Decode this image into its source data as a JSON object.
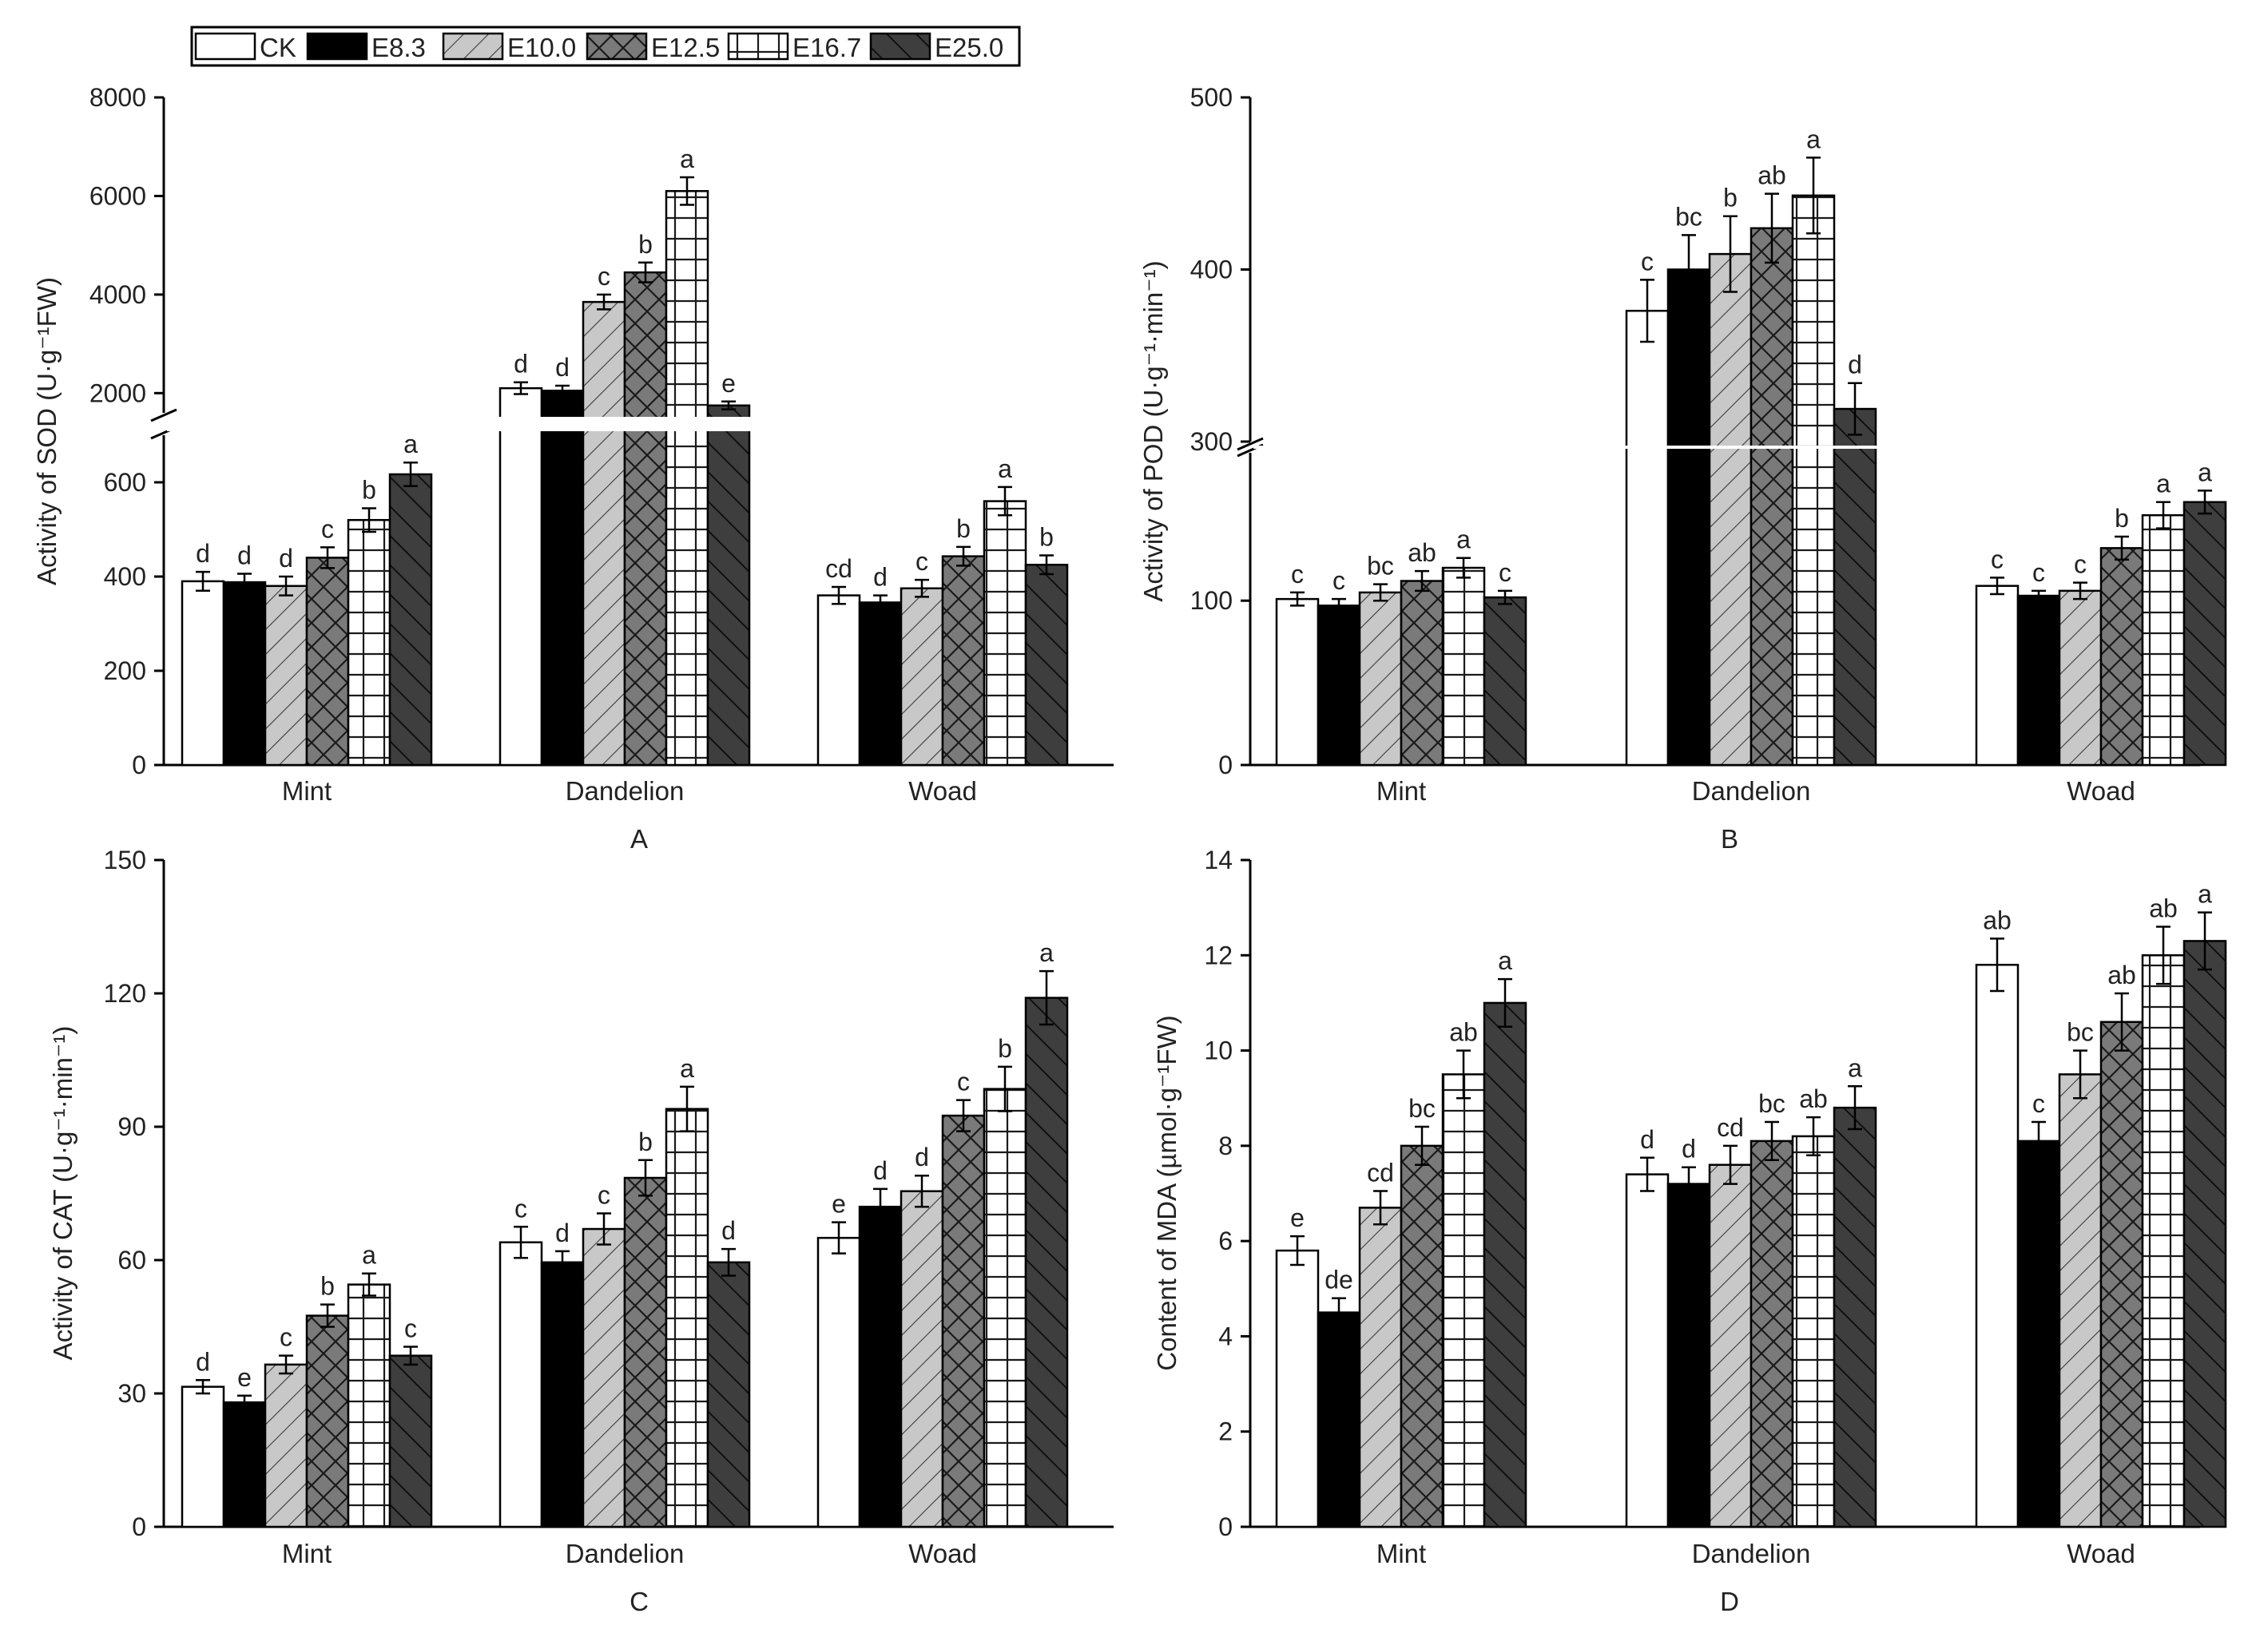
{
  "legend": {
    "entries": [
      {
        "label": "CK",
        "pattern": "white"
      },
      {
        "label": "E8.3",
        "pattern": "black"
      },
      {
        "label": "E10.0",
        "pattern": "light-diag"
      },
      {
        "label": "E12.5",
        "pattern": "cross"
      },
      {
        "label": "E16.7",
        "pattern": "grid"
      },
      {
        "label": "E25.0",
        "pattern": "dark-diag"
      }
    ]
  },
  "colors": {
    "black": "#000000",
    "light_gray": "#c8c8c8",
    "mid_gray": "#7a7a7a",
    "dark_gray": "#3e3e3e",
    "white": "#ffffff"
  },
  "chart_data": [
    {
      "id": "A",
      "panel_label": "A",
      "type": "bar",
      "ylabel": "Activity of SOD (U·g⁻¹FW)",
      "categories": [
        "Mint",
        "Dandelion",
        "Woad"
      ],
      "series_names": [
        "CK",
        "E8.3",
        "E10.0",
        "E12.5",
        "E16.7",
        "E25.0"
      ],
      "broken_axis": true,
      "lower_range": [
        0,
        700
      ],
      "lower_ticks": [
        0,
        200,
        400,
        600
      ],
      "upper_range": [
        1600,
        8000
      ],
      "upper_ticks": [
        2000,
        4000,
        6000,
        8000
      ],
      "values": [
        [
          390,
          388,
          380,
          440,
          520,
          617
        ],
        [
          2100,
          2050,
          3850,
          4450,
          6100,
          1750
        ],
        [
          360,
          345,
          375,
          443,
          560,
          425
        ]
      ],
      "errors": [
        [
          20,
          18,
          20,
          22,
          25,
          25
        ],
        [
          120,
          100,
          150,
          200,
          280,
          80
        ],
        [
          18,
          15,
          18,
          20,
          30,
          20
        ]
      ],
      "letters": [
        [
          "d",
          "d",
          "d",
          "c",
          "b",
          "a"
        ],
        [
          "d",
          "d",
          "c",
          "b",
          "a",
          "e"
        ],
        [
          "cd",
          "d",
          "c",
          "b",
          "a",
          "b"
        ]
      ]
    },
    {
      "id": "B",
      "panel_label": "B",
      "type": "bar",
      "ylabel": "Activity of POD (U·g⁻¹·min⁻¹)",
      "categories": [
        "Mint",
        "Dandelion",
        "Woad"
      ],
      "series_names": [
        "CK",
        "E8.3",
        "E10.0",
        "E12.5",
        "E16.7",
        "E25.0"
      ],
      "broken_axis": true,
      "lower_range": [
        0,
        190
      ],
      "lower_ticks": [
        0,
        100
      ],
      "upper_range": [
        300,
        500
      ],
      "upper_ticks": [
        300,
        400,
        500
      ],
      "values": [
        [
          101,
          97,
          105,
          112,
          120,
          102
        ],
        [
          376,
          400,
          409,
          424,
          443,
          319
        ],
        [
          109,
          103,
          106,
          132,
          152,
          160
        ]
      ],
      "errors": [
        [
          4,
          4,
          5,
          6,
          6,
          4
        ],
        [
          18,
          20,
          22,
          20,
          22,
          15
        ],
        [
          5,
          3,
          5,
          7,
          8,
          7
        ]
      ],
      "letters": [
        [
          "c",
          "c",
          "bc",
          "ab",
          "a",
          "c"
        ],
        [
          "c",
          "bc",
          "b",
          "ab",
          "a",
          "d"
        ],
        [
          "c",
          "c",
          "c",
          "b",
          "a",
          "a"
        ]
      ]
    },
    {
      "id": "C",
      "panel_label": "C",
      "type": "bar",
      "ylabel": "Activity of CAT (U·g⁻¹·min⁻¹)",
      "categories": [
        "Mint",
        "Dandelion",
        "Woad"
      ],
      "series_names": [
        "CK",
        "E8.3",
        "E10.0",
        "E12.5",
        "E16.7",
        "E25.0"
      ],
      "broken_axis": false,
      "ylim": [
        0,
        150
      ],
      "yticks": [
        0,
        30,
        60,
        90,
        120,
        150
      ],
      "values": [
        [
          31.5,
          28,
          36.5,
          47.5,
          54.5,
          38.5
        ],
        [
          64,
          59.5,
          67,
          78.5,
          94,
          59.5
        ],
        [
          65,
          72,
          75.5,
          92.5,
          98.5,
          119
        ]
      ],
      "errors": [
        [
          1.5,
          1.5,
          2,
          2.5,
          2.5,
          2
        ],
        [
          3.5,
          2.5,
          3.5,
          4,
          5,
          3
        ],
        [
          3.5,
          4,
          3.5,
          3.5,
          5,
          6
        ]
      ],
      "letters": [
        [
          "d",
          "e",
          "c",
          "b",
          "a",
          "c"
        ],
        [
          "c",
          "d",
          "c",
          "b",
          "a",
          "d"
        ],
        [
          "e",
          "d",
          "d",
          "c",
          "b",
          "a"
        ]
      ]
    },
    {
      "id": "D",
      "panel_label": "D",
      "type": "bar",
      "ylabel": "Content of MDA (µmol·g⁻¹FW)",
      "categories": [
        "Mint",
        "Dandelion",
        "Woad"
      ],
      "series_names": [
        "CK",
        "E8.3",
        "E10.0",
        "E12.5",
        "E16.7",
        "E25.0"
      ],
      "broken_axis": false,
      "ylim": [
        0,
        14
      ],
      "yticks": [
        0,
        2,
        4,
        6,
        8,
        10,
        12,
        14
      ],
      "values": [
        [
          5.8,
          4.5,
          6.7,
          8.0,
          9.5,
          11.0
        ],
        [
          7.4,
          7.2,
          7.6,
          8.1,
          8.2,
          8.8
        ],
        [
          11.8,
          8.1,
          9.5,
          10.6,
          12.0,
          12.3
        ]
      ],
      "errors": [
        [
          0.3,
          0.3,
          0.35,
          0.4,
          0.5,
          0.5
        ],
        [
          0.35,
          0.35,
          0.4,
          0.4,
          0.4,
          0.45
        ],
        [
          0.55,
          0.4,
          0.5,
          0.6,
          0.6,
          0.6
        ]
      ],
      "letters": [
        [
          "e",
          "de",
          "cd",
          "bc",
          "ab",
          "a"
        ],
        [
          "d",
          "d",
          "cd",
          "bc",
          "ab",
          "a"
        ],
        [
          "ab",
          "c",
          "bc",
          "ab",
          "ab",
          "a"
        ]
      ]
    }
  ]
}
